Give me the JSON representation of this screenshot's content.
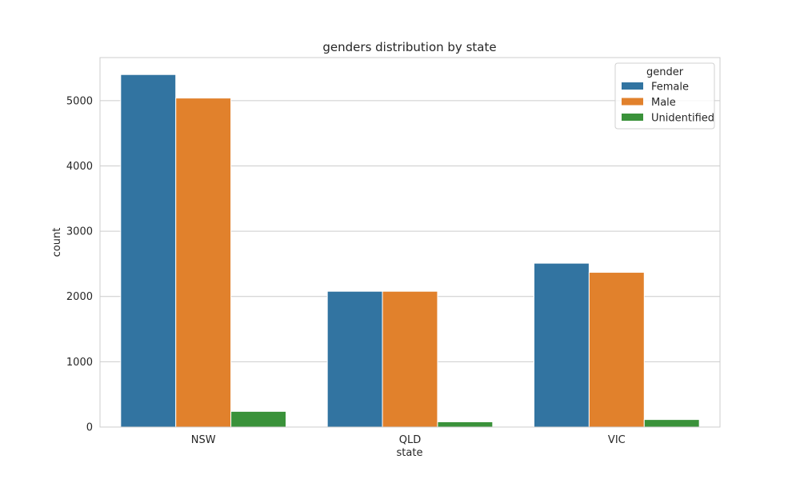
{
  "chart_data": {
    "type": "bar",
    "title": "genders distribution by state",
    "xlabel": "state",
    "ylabel": "count",
    "categories": [
      "NSW",
      "QLD",
      "VIC"
    ],
    "series": [
      {
        "name": "Female",
        "color": "#3274a1",
        "values": [
          5400,
          2080,
          2510
        ]
      },
      {
        "name": "Male",
        "color": "#e1812c",
        "values": [
          5040,
          2080,
          2370
        ]
      },
      {
        "name": "Unidentified",
        "color": "#3a923a",
        "values": [
          240,
          80,
          115
        ]
      }
    ],
    "ylim": [
      0,
      5660
    ],
    "yticks": [
      0,
      1000,
      2000,
      3000,
      4000,
      5000
    ],
    "grid": true,
    "legend": {
      "title": "gender",
      "placement": "top-right"
    }
  }
}
